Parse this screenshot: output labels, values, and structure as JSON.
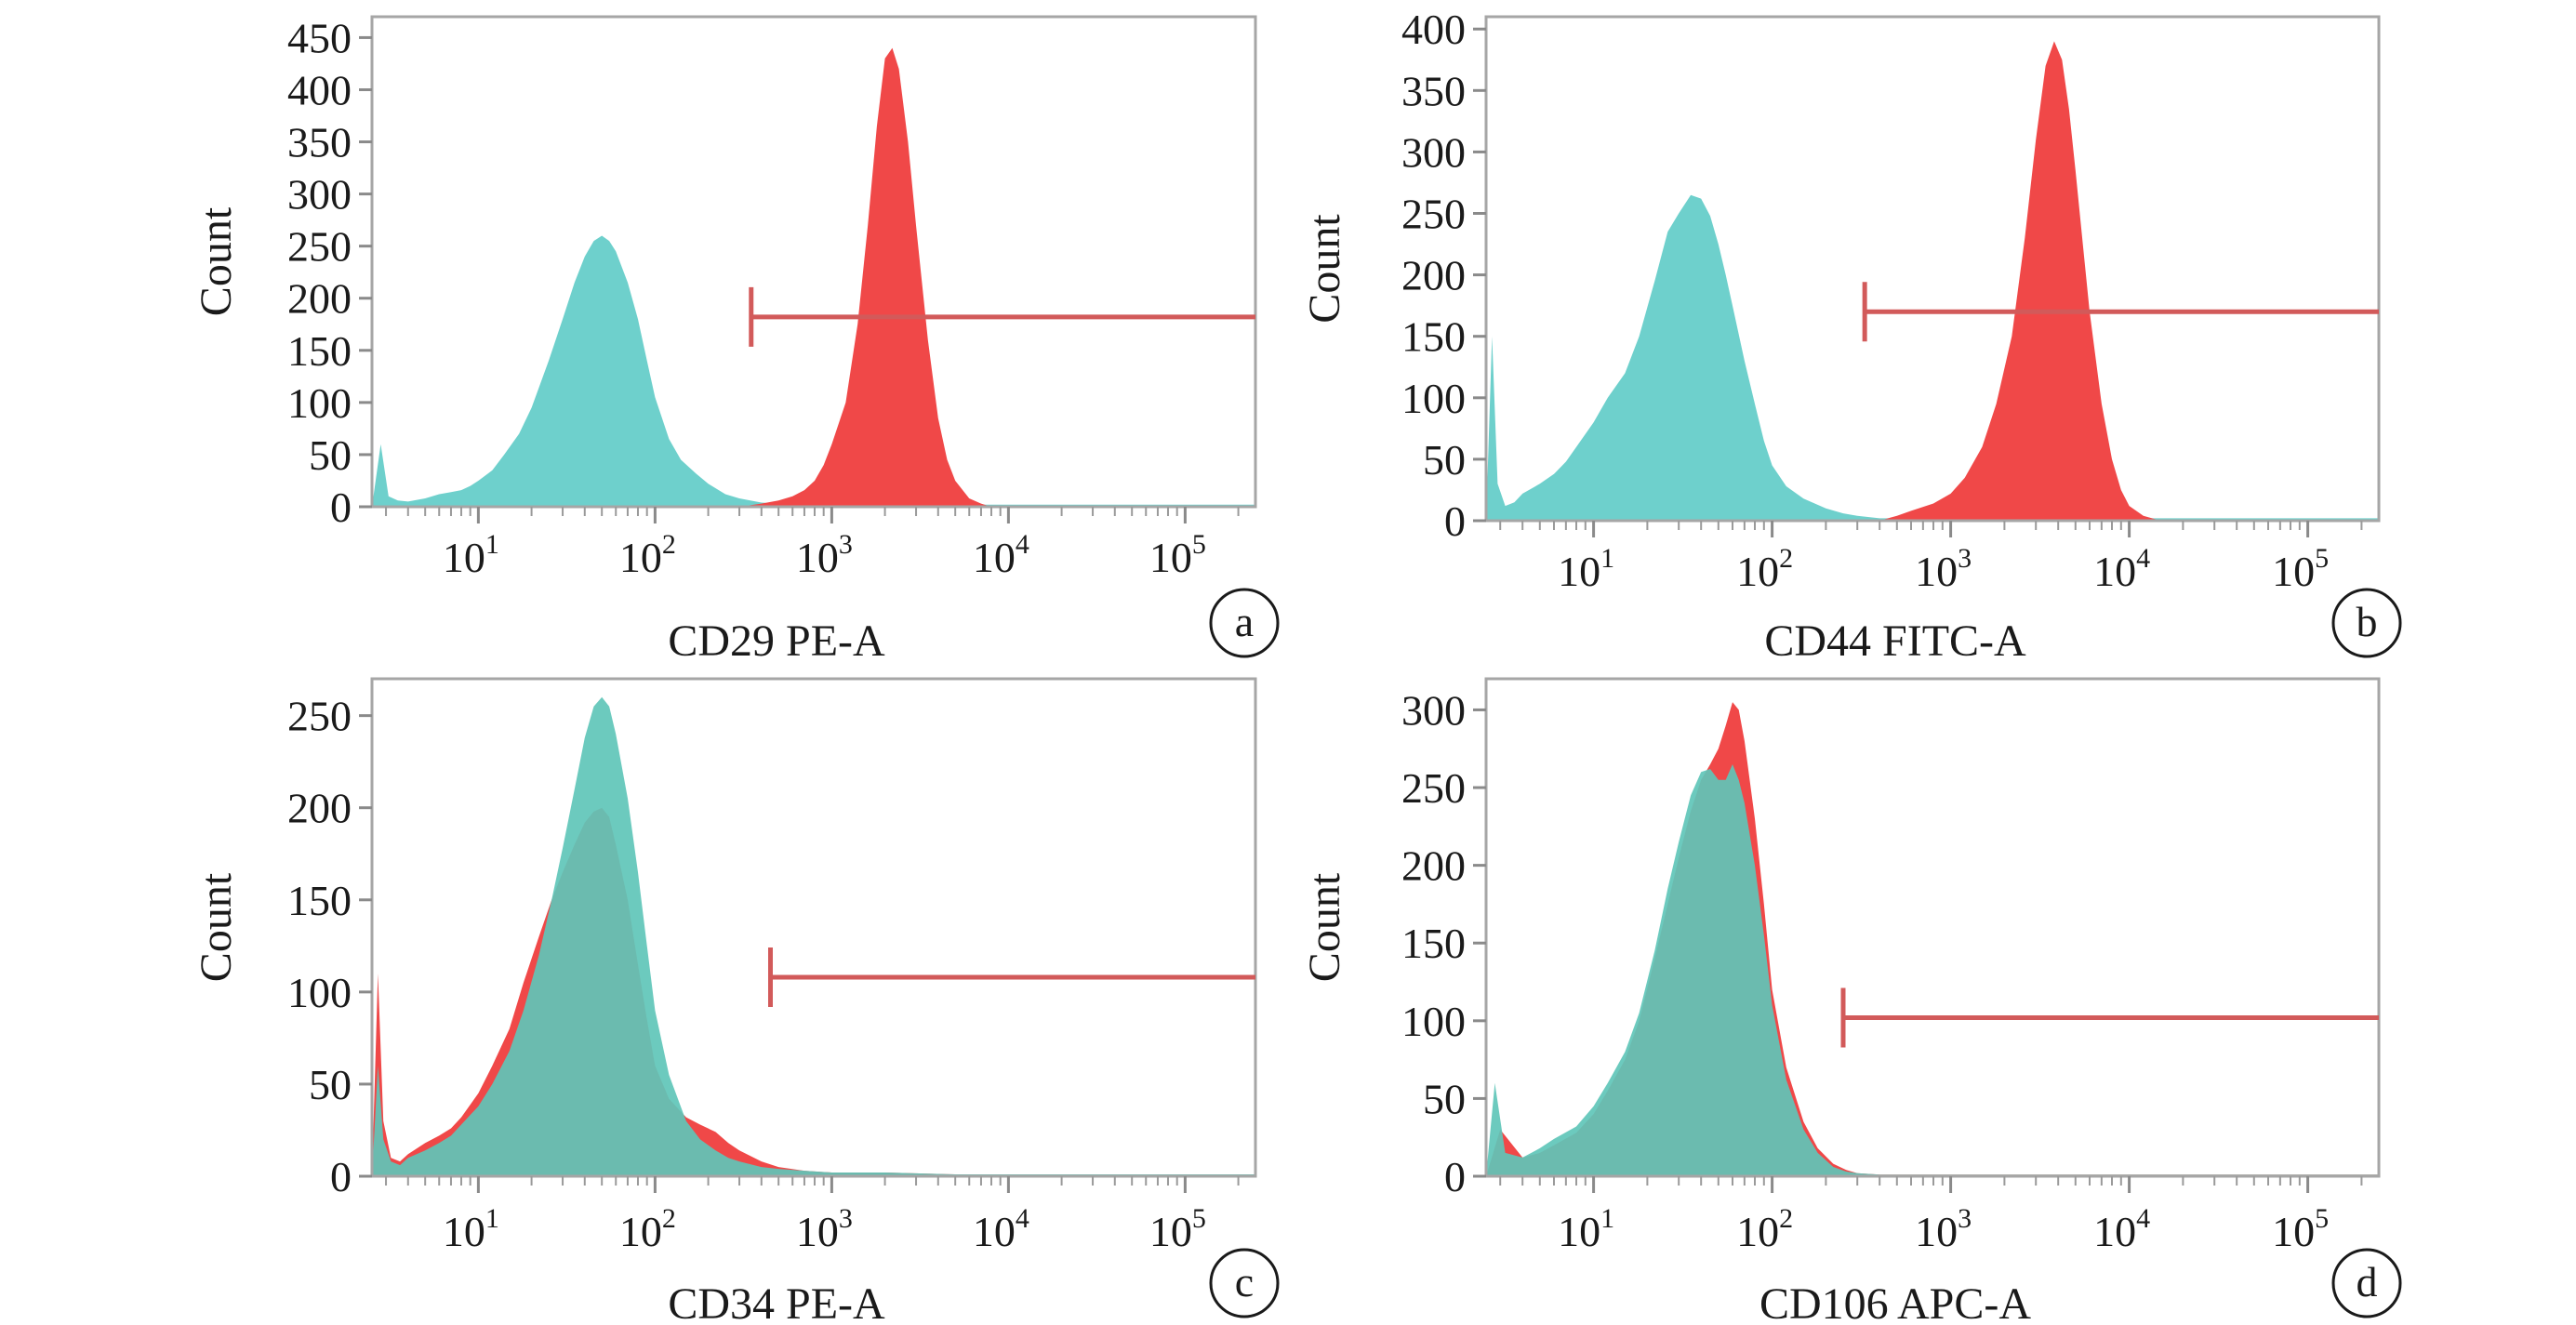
{
  "colors": {
    "control": "#6ed0cc",
    "stained": "#f04848",
    "overlap": "#5fc6b8",
    "gate": "#d25a5a",
    "frame": "#a6a6a6"
  },
  "chart_data": [
    {
      "type": "area",
      "panel_label": "a",
      "xlabel": "CD29 PE-A",
      "ylabel": "Count",
      "xscale": "log",
      "xlim": [
        2.5,
        250000
      ],
      "ylim": [
        0,
        470
      ],
      "yticks": [
        "0",
        "50",
        "100",
        "150",
        "200",
        "250",
        "300",
        "350",
        "400",
        "450"
      ],
      "ytick_values": [
        0,
        50,
        100,
        150,
        200,
        250,
        300,
        350,
        400,
        450
      ],
      "xticks": [
        {
          "base": "10",
          "exp": "1",
          "value": 10
        },
        {
          "base": "10",
          "exp": "2",
          "value": 100
        },
        {
          "base": "10",
          "exp": "3",
          "value": 1000
        },
        {
          "base": "10",
          "exp": "4",
          "value": 10000
        },
        {
          "base": "10",
          "exp": "5",
          "value": 100000
        }
      ],
      "gate": {
        "x_start": 350,
        "x_end": 250000,
        "y": 182
      },
      "series": [
        {
          "role": "control",
          "x": [
            2.5,
            2.8,
            3.1,
            3.5,
            4,
            5,
            6,
            7,
            8,
            9,
            10,
            12,
            14,
            17,
            20,
            25,
            30,
            35,
            40,
            45,
            50,
            55,
            60,
            70,
            80,
            90,
            100,
            120,
            140,
            170,
            200,
            250,
            300,
            400,
            500,
            700,
            1000,
            2000,
            5000,
            10000,
            50000,
            250000
          ],
          "y": [
            0,
            60,
            10,
            6,
            5,
            8,
            12,
            14,
            16,
            20,
            25,
            35,
            50,
            70,
            95,
            140,
            180,
            215,
            240,
            255,
            260,
            255,
            245,
            215,
            180,
            140,
            105,
            65,
            45,
            32,
            22,
            12,
            8,
            4,
            3,
            2,
            2,
            2,
            2,
            2,
            2,
            2
          ]
        },
        {
          "role": "stained",
          "x": [
            300,
            400,
            500,
            600,
            700,
            800,
            900,
            1000,
            1200,
            1400,
            1600,
            1800,
            2000,
            2200,
            2400,
            2700,
            3000,
            3500,
            4000,
            4500,
            5000,
            6000,
            7000,
            8000
          ],
          "y": [
            0,
            3,
            6,
            10,
            16,
            25,
            40,
            60,
            100,
            175,
            270,
            365,
            430,
            440,
            420,
            350,
            270,
            160,
            85,
            45,
            25,
            8,
            3,
            0
          ]
        }
      ]
    },
    {
      "type": "area",
      "panel_label": "b",
      "xlabel": "CD44 FITC-A",
      "ylabel": "Count",
      "xscale": "log",
      "xlim": [
        2.5,
        250000
      ],
      "ylim": [
        0,
        410
      ],
      "yticks": [
        "0",
        "50",
        "100",
        "150",
        "200",
        "250",
        "300",
        "350",
        "400"
      ],
      "ytick_values": [
        0,
        50,
        100,
        150,
        200,
        250,
        300,
        350,
        400
      ],
      "xticks": [
        {
          "base": "10",
          "exp": "1",
          "value": 10
        },
        {
          "base": "10",
          "exp": "2",
          "value": 100
        },
        {
          "base": "10",
          "exp": "3",
          "value": 1000
        },
        {
          "base": "10",
          "exp": "4",
          "value": 10000
        },
        {
          "base": "10",
          "exp": "5",
          "value": 100000
        }
      ],
      "gate": {
        "x_start": 330,
        "x_end": 250000,
        "y": 170
      },
      "series": [
        {
          "role": "control",
          "x": [
            2.5,
            2.7,
            2.9,
            3.2,
            3.6,
            4,
            5,
            6,
            7,
            8,
            10,
            12,
            15,
            18,
            22,
            26,
            30,
            35,
            40,
            45,
            50,
            55,
            60,
            70,
            80,
            90,
            100,
            120,
            150,
            200,
            250,
            300,
            400,
            500,
            700,
            1000,
            5000,
            250000
          ],
          "y": [
            0,
            150,
            30,
            12,
            15,
            22,
            30,
            38,
            48,
            60,
            80,
            100,
            120,
            150,
            195,
            235,
            250,
            265,
            262,
            248,
            225,
            200,
            175,
            130,
            95,
            65,
            45,
            28,
            18,
            10,
            6,
            4,
            2,
            2,
            2,
            2,
            2,
            2
          ]
        },
        {
          "role": "stained",
          "x": [
            400,
            500,
            600,
            800,
            1000,
            1200,
            1500,
            1800,
            2200,
            2600,
            3000,
            3400,
            3800,
            4200,
            4600,
            5000,
            5500,
            6000,
            7000,
            8000,
            9000,
            10000,
            12000,
            15000
          ],
          "y": [
            0,
            4,
            8,
            14,
            22,
            35,
            60,
            95,
            150,
            230,
            310,
            370,
            390,
            375,
            335,
            285,
            225,
            170,
            95,
            50,
            25,
            12,
            4,
            0
          ]
        }
      ]
    },
    {
      "type": "area",
      "panel_label": "c",
      "xlabel": "CD34 PE-A",
      "ylabel": "Count",
      "xscale": "log",
      "xlim": [
        2.5,
        250000
      ],
      "ylim": [
        0,
        270
      ],
      "yticks": [
        "0",
        "50",
        "100",
        "150",
        "200",
        "250"
      ],
      "ytick_values": [
        0,
        50,
        100,
        150,
        200,
        250
      ],
      "xticks": [
        {
          "base": "10",
          "exp": "1",
          "value": 10
        },
        {
          "base": "10",
          "exp": "2",
          "value": 100
        },
        {
          "base": "10",
          "exp": "3",
          "value": 1000
        },
        {
          "base": "10",
          "exp": "4",
          "value": 10000
        },
        {
          "base": "10",
          "exp": "5",
          "value": 100000
        }
      ],
      "gate": {
        "x_start": 450,
        "x_end": 250000,
        "y": 108
      },
      "series": [
        {
          "role": "stained",
          "x": [
            2.5,
            2.7,
            2.9,
            3.2,
            3.6,
            4,
            5,
            6,
            7,
            8,
            10,
            12,
            15,
            18,
            22,
            26,
            30,
            35,
            40,
            45,
            50,
            55,
            60,
            70,
            80,
            90,
            100,
            120,
            150,
            180,
            220,
            260,
            300,
            400,
            500,
            700,
            1000,
            2000,
            5000,
            250000
          ],
          "y": [
            0,
            110,
            30,
            10,
            8,
            12,
            18,
            22,
            26,
            32,
            45,
            60,
            80,
            105,
            130,
            150,
            165,
            180,
            192,
            198,
            200,
            195,
            180,
            150,
            115,
            85,
            60,
            42,
            32,
            28,
            24,
            18,
            14,
            8,
            5,
            3,
            2,
            2,
            1,
            1
          ]
        },
        {
          "role": "overlap",
          "x": [
            2.5,
            2.7,
            2.9,
            3.2,
            3.6,
            4,
            5,
            6,
            7,
            8,
            10,
            12,
            15,
            18,
            22,
            26,
            30,
            35,
            40,
            45,
            50,
            55,
            60,
            70,
            80,
            90,
            100,
            120,
            150,
            180,
            220,
            260,
            300,
            400,
            500,
            700,
            1000,
            2000,
            5000,
            250000
          ],
          "y": [
            0,
            60,
            20,
            8,
            6,
            10,
            14,
            18,
            22,
            28,
            38,
            50,
            68,
            90,
            120,
            150,
            178,
            210,
            238,
            255,
            260,
            255,
            240,
            205,
            165,
            125,
            90,
            55,
            30,
            20,
            14,
            10,
            8,
            5,
            4,
            3,
            2,
            2,
            1,
            1
          ]
        }
      ]
    },
    {
      "type": "area",
      "panel_label": "d",
      "xlabel": "CD106 APC-A",
      "ylabel": "Count",
      "xscale": "log",
      "xlim": [
        2.5,
        250000
      ],
      "ylim": [
        0,
        320
      ],
      "yticks": [
        "0",
        "50",
        "100",
        "150",
        "200",
        "250",
        "300"
      ],
      "ytick_values": [
        0,
        50,
        100,
        150,
        200,
        250,
        300
      ],
      "xticks": [
        {
          "base": "10",
          "exp": "1",
          "value": 10
        },
        {
          "base": "10",
          "exp": "2",
          "value": 100
        },
        {
          "base": "10",
          "exp": "3",
          "value": 1000
        },
        {
          "base": "10",
          "exp": "4",
          "value": 10000
        },
        {
          "base": "10",
          "exp": "5",
          "value": 100000
        }
      ],
      "gate": {
        "x_start": 250,
        "x_end": 250000,
        "y": 102
      },
      "series": [
        {
          "role": "stained",
          "x": [
            2.5,
            3,
            4,
            5,
            6,
            8,
            10,
            12,
            15,
            18,
            22,
            26,
            30,
            35,
            40,
            45,
            50,
            55,
            60,
            65,
            70,
            80,
            90,
            100,
            120,
            150,
            180,
            220,
            260,
            300,
            400,
            1000,
            250000
          ],
          "y": [
            0,
            30,
            12,
            15,
            20,
            28,
            40,
            55,
            75,
            100,
            140,
            175,
            205,
            235,
            255,
            265,
            275,
            290,
            305,
            300,
            280,
            230,
            175,
            120,
            70,
            35,
            18,
            8,
            4,
            2,
            1,
            1,
            1
          ]
        },
        {
          "role": "overlap",
          "x": [
            2.5,
            2.8,
            3.2,
            4,
            5,
            6,
            8,
            10,
            12,
            15,
            18,
            22,
            26,
            30,
            35,
            40,
            45,
            50,
            55,
            60,
            65,
            70,
            80,
            90,
            100,
            120,
            150,
            180,
            220,
            260,
            300,
            400,
            1000,
            250000
          ],
          "y": [
            0,
            60,
            15,
            12,
            18,
            24,
            32,
            45,
            60,
            80,
            105,
            145,
            185,
            215,
            245,
            260,
            262,
            255,
            255,
            265,
            255,
            240,
            200,
            155,
            110,
            62,
            30,
            15,
            6,
            3,
            2,
            1,
            1,
            1
          ]
        }
      ]
    }
  ]
}
